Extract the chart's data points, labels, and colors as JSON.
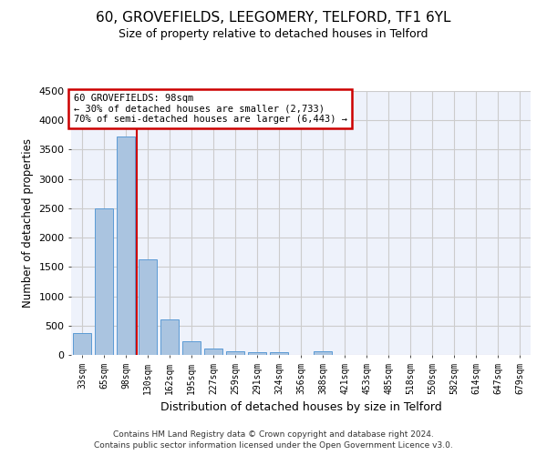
{
  "title": "60, GROVEFIELDS, LEEGOMERY, TELFORD, TF1 6YL",
  "subtitle": "Size of property relative to detached houses in Telford",
  "xlabel": "Distribution of detached houses by size in Telford",
  "ylabel": "Number of detached properties",
  "categories": [
    "33sqm",
    "65sqm",
    "98sqm",
    "130sqm",
    "162sqm",
    "195sqm",
    "227sqm",
    "259sqm",
    "291sqm",
    "324sqm",
    "356sqm",
    "388sqm",
    "421sqm",
    "453sqm",
    "485sqm",
    "518sqm",
    "550sqm",
    "582sqm",
    "614sqm",
    "647sqm",
    "679sqm"
  ],
  "values": [
    370,
    2500,
    3730,
    1630,
    600,
    230,
    110,
    65,
    50,
    40,
    0,
    65,
    0,
    0,
    0,
    0,
    0,
    0,
    0,
    0,
    0
  ],
  "bar_color": "#aac4e0",
  "bar_edge_color": "#5b9bd5",
  "line_x_index": 2,
  "annotation_line1": "60 GROVEFIELDS: 98sqm",
  "annotation_line2": "← 30% of detached houses are smaller (2,733)",
  "annotation_line3": "70% of semi-detached houses are larger (6,443) →",
  "annotation_box_color": "#cc0000",
  "vline_color": "#cc0000",
  "ylim": [
    0,
    4500
  ],
  "yticks": [
    0,
    500,
    1000,
    1500,
    2000,
    2500,
    3000,
    3500,
    4000,
    4500
  ],
  "grid_color": "#cccccc",
  "background_color": "#eef2fb",
  "footer_line1": "Contains HM Land Registry data © Crown copyright and database right 2024.",
  "footer_line2": "Contains public sector information licensed under the Open Government Licence v3.0."
}
